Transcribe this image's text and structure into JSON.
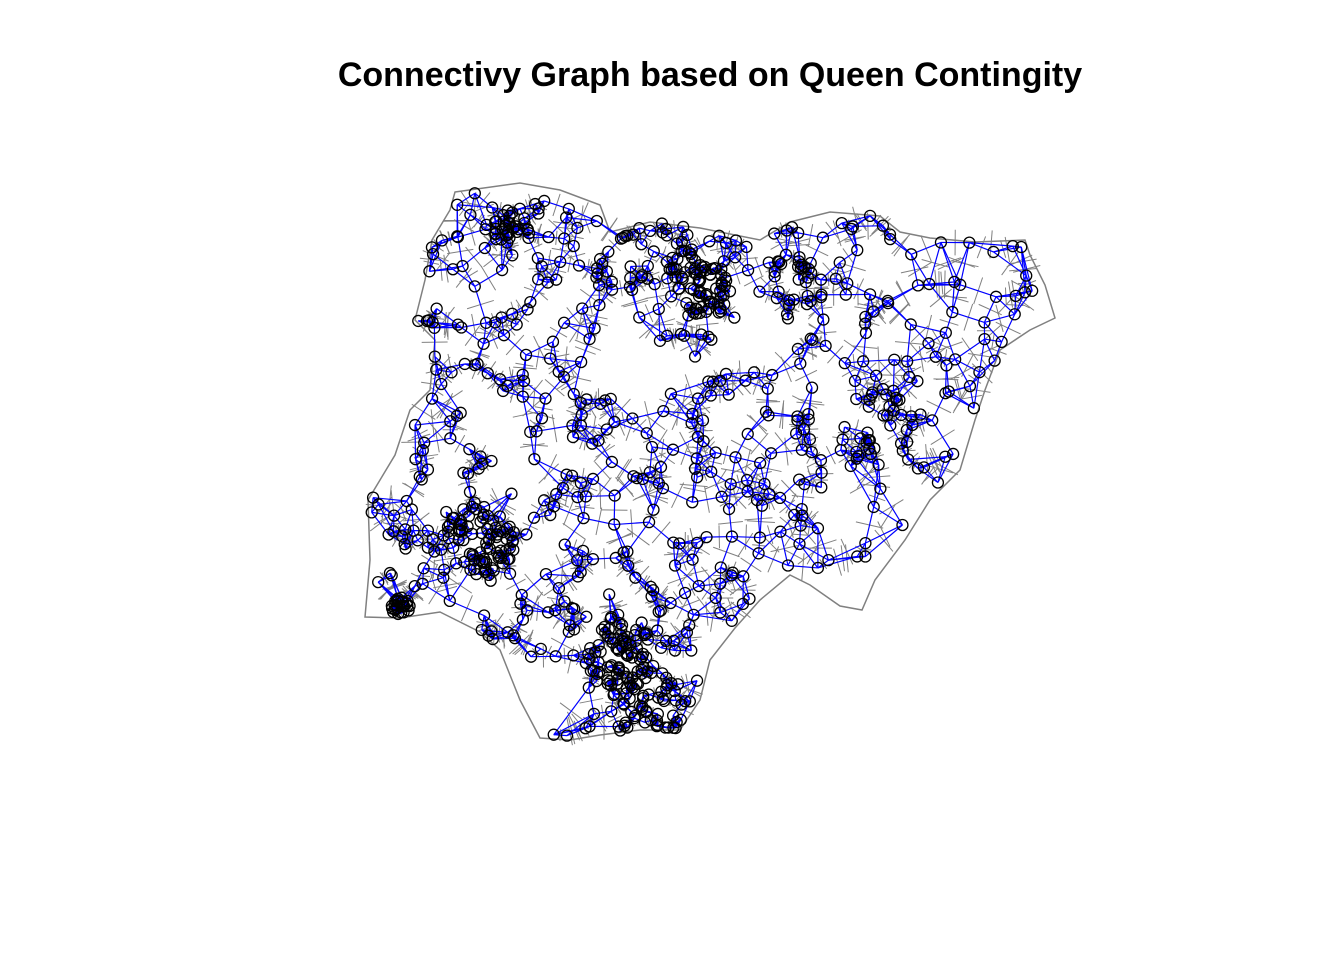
{
  "title": "Connectivy Graph based on Queen Contingity",
  "colors": {
    "background": "#ffffff",
    "boundary": "#808080",
    "edges": "#0000ff",
    "nodes": "#000000",
    "title": "#000000"
  }
}
